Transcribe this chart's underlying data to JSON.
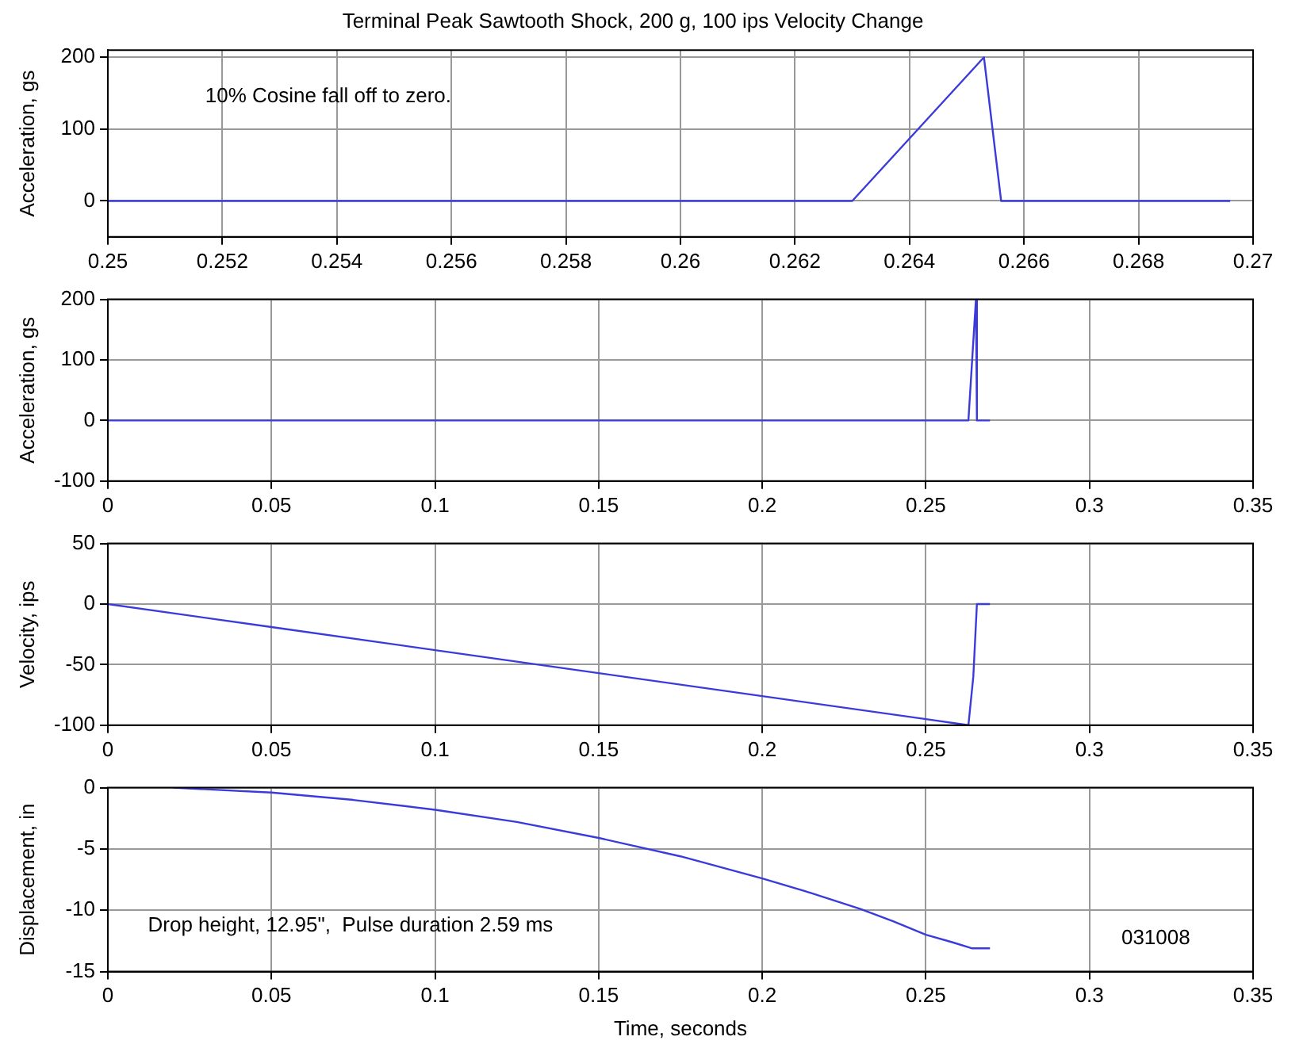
{
  "chart_data": [
    {
      "type": "line",
      "title": "Terminal Peak Sawtooth Shock, 200 g, 100 ips Velocity Change",
      "ylabel": "Acceleration, gs",
      "annotations": [
        "10% Cosine fall off to zero."
      ],
      "x": [
        0.25,
        0.263,
        0.2653,
        0.2656,
        0.2696
      ],
      "series": [
        {
          "color": "#3b3bdb",
          "values": [
            0,
            0,
            200,
            0,
            0
          ]
        }
      ],
      "xlim": [
        0.25,
        0.27
      ],
      "xticks": [
        0.25,
        0.252,
        0.254,
        0.256,
        0.258,
        0.26,
        0.262,
        0.264,
        0.266,
        0.268,
        0.27
      ],
      "ylim": [
        -50,
        210
      ],
      "yticks": [
        0,
        100,
        200
      ],
      "grid": true,
      "marker": "none",
      "line_style": "solid"
    },
    {
      "type": "line",
      "ylabel": "Acceleration, gs",
      "x": [
        0,
        0.263,
        0.2653,
        0.2656,
        0.2696
      ],
      "series": [
        {
          "color": "#3b3bdb",
          "values": [
            0,
            0,
            200,
            0,
            0
          ]
        }
      ],
      "xlim": [
        0,
        0.35
      ],
      "xticks": [
        0,
        0.05,
        0.1,
        0.15,
        0.2,
        0.25,
        0.3,
        0.35
      ],
      "ylim": [
        -100,
        200
      ],
      "yticks": [
        -100,
        0,
        100,
        200
      ],
      "grid": true,
      "marker": "none",
      "line_style": "solid"
    },
    {
      "type": "line",
      "ylabel": "Velocity, ips",
      "x": [
        0,
        0.05,
        0.1,
        0.15,
        0.2,
        0.25,
        0.263,
        0.2645,
        0.2656,
        0.2696
      ],
      "series": [
        {
          "color": "#3b3bdb",
          "values": [
            0,
            -19,
            -38,
            -57,
            -76,
            -95,
            -100,
            -60,
            0,
            0
          ]
        }
      ],
      "xlim": [
        0,
        0.35
      ],
      "xticks": [
        0,
        0.05,
        0.1,
        0.15,
        0.2,
        0.25,
        0.3,
        0.35
      ],
      "ylim": [
        -100,
        50
      ],
      "yticks": [
        -100,
        -50,
        0,
        50
      ],
      "grid": true,
      "marker": "none",
      "line_style": "solid"
    },
    {
      "type": "line",
      "ylabel": "Displacement, in",
      "xlabel": "Time, seconds",
      "annotations": [
        "Drop height, 12.95\",  Pulse duration 2.59 ms",
        "031008"
      ],
      "x": [
        0.02,
        0.05,
        0.075,
        0.1,
        0.125,
        0.15,
        0.175,
        0.2,
        0.215,
        0.23,
        0.24,
        0.25,
        0.258,
        0.264,
        0.2696
      ],
      "series": [
        {
          "color": "#3b3bdb",
          "values": [
            0,
            -0.4,
            -1,
            -1.8,
            -2.8,
            -4.1,
            -5.6,
            -7.4,
            -8.6,
            -9.9,
            -10.9,
            -12,
            -12.6,
            -13.1,
            -13.1
          ]
        }
      ],
      "xlim": [
        0,
        0.35
      ],
      "xticks": [
        0,
        0.05,
        0.1,
        0.15,
        0.2,
        0.25,
        0.3,
        0.35
      ],
      "ylim": [
        -15,
        0
      ],
      "yticks": [
        -15,
        -10,
        -5,
        0
      ],
      "grid": true,
      "marker": "none",
      "line_style": "solid"
    }
  ]
}
